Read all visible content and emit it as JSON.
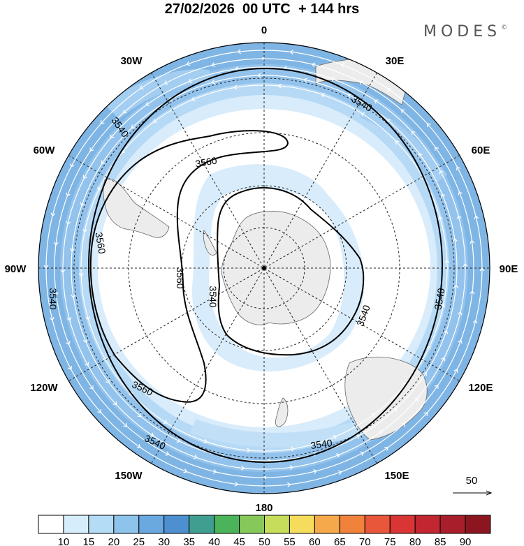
{
  "title": "27/02/2026  00 UTC  + 144 hrs",
  "brand": "MODES",
  "brand_mark": "©",
  "longitude_labels": [
    "0",
    "30E",
    "60E",
    "90E",
    "120E",
    "150E",
    "180",
    "150W",
    "120W",
    "90W",
    "60W",
    "30W"
  ],
  "contour_labels": [
    "3540",
    "3540",
    "3540",
    "3540",
    "3540",
    "3540",
    "3540",
    "3560",
    "3560",
    "3560",
    "3560",
    "3540"
  ],
  "reference_vector": "50",
  "colorbar": {
    "labels": [
      "10",
      "15",
      "20",
      "25",
      "30",
      "35",
      "40",
      "45",
      "50",
      "55",
      "60",
      "65",
      "70",
      "75",
      "80",
      "85",
      "90"
    ],
    "colors": [
      "#ffffff",
      "#d6eefb",
      "#b4dcf6",
      "#8ec3ec",
      "#6aa8e0",
      "#4d8fcf",
      "#3f9e8f",
      "#4bb35a",
      "#86c85a",
      "#c5dd5a",
      "#f6dc5c",
      "#f5a94a",
      "#f0823c",
      "#e8573a",
      "#d93535",
      "#c22630",
      "#a81e2a",
      "#8b1620"
    ]
  },
  "colors": {
    "ring_outer": "#84b8e6",
    "ring_mid": "#a6cdf0",
    "ring_inner": "#c9e3f8",
    "land": "#eeeeee"
  }
}
